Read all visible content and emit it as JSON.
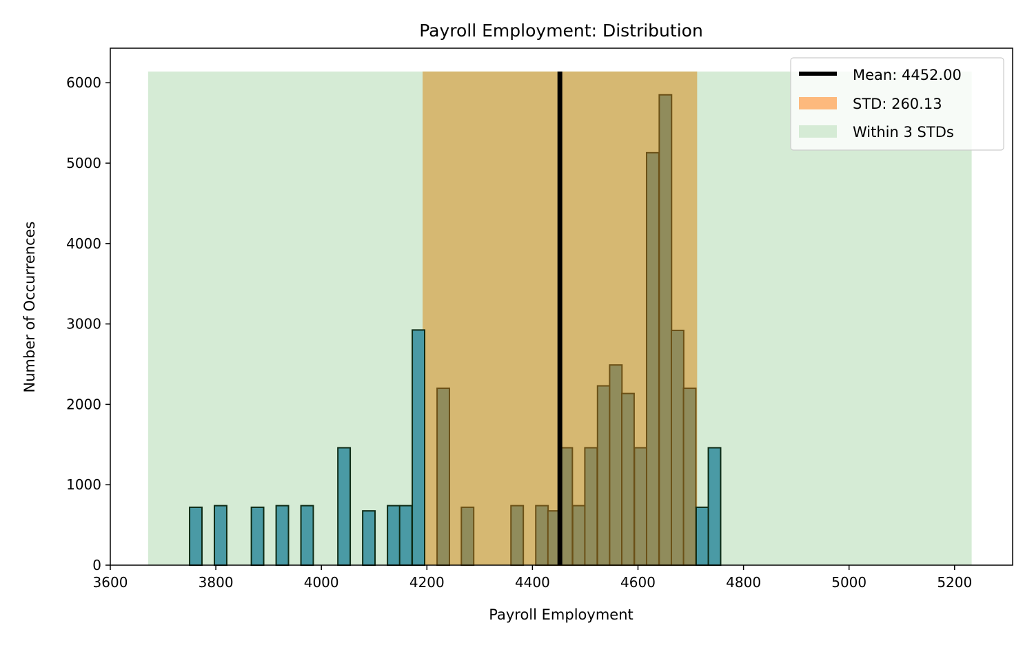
{
  "chart_data": {
    "type": "bar",
    "title": "Payroll Employment: Distribution",
    "xlabel": "Payroll Employment",
    "ylabel": "Number of Occurrences",
    "xlim": [
      3600,
      5310
    ],
    "ylim": [
      0,
      6430
    ],
    "xticks": [
      3600,
      3800,
      4000,
      4200,
      4400,
      4600,
      4800,
      5000,
      5200
    ],
    "yticks": [
      0,
      1000,
      2000,
      3000,
      4000,
      5000,
      6000
    ],
    "grid": false,
    "legend_position": "top-right",
    "bin_width": 23.4,
    "bins": [
      {
        "x": 3762,
        "count": 720
      },
      {
        "x": 3809,
        "count": 740
      },
      {
        "x": 3879,
        "count": 720
      },
      {
        "x": 3926,
        "count": 740
      },
      {
        "x": 3973,
        "count": 740
      },
      {
        "x": 4043,
        "count": 1460
      },
      {
        "x": 4090,
        "count": 675
      },
      {
        "x": 4137,
        "count": 740
      },
      {
        "x": 4160,
        "count": 740
      },
      {
        "x": 4184,
        "count": 2925
      },
      {
        "x": 4231,
        "count": 2200
      },
      {
        "x": 4277,
        "count": 720
      },
      {
        "x": 4371,
        "count": 740
      },
      {
        "x": 4418,
        "count": 740
      },
      {
        "x": 4441,
        "count": 675
      },
      {
        "x": 4464,
        "count": 1460
      },
      {
        "x": 4488,
        "count": 740
      },
      {
        "x": 4511,
        "count": 1460
      },
      {
        "x": 4535,
        "count": 2230
      },
      {
        "x": 4558,
        "count": 2490
      },
      {
        "x": 4581,
        "count": 2135
      },
      {
        "x": 4605,
        "count": 1460
      },
      {
        "x": 4628,
        "count": 5130
      },
      {
        "x": 4652,
        "count": 5850
      },
      {
        "x": 4675,
        "count": 2920
      },
      {
        "x": 4698,
        "count": 2200
      },
      {
        "x": 4722,
        "count": 720
      },
      {
        "x": 4745,
        "count": 1460
      }
    ],
    "mean": 4452.0,
    "std": 260.13,
    "band_top": 6140,
    "std_band": [
      4191.87,
      4712.13
    ],
    "three_std_band": [
      3671.61,
      5232.39
    ],
    "legend": [
      {
        "label": "Mean: 4452.00",
        "kind": "line",
        "color": "#000000"
      },
      {
        "label": "STD: 260.13",
        "kind": "patch",
        "color": "#fdb97d"
      },
      {
        "label": "Within 3 STDs",
        "kind": "patch",
        "color": "#d5ebd5"
      }
    ],
    "colors": {
      "bar_fill": "#4a9aa5",
      "bar_edge": "#0d2a14",
      "bar_fill_in_std": "#908c5c",
      "bar_edge_in_std": "#6b5016",
      "std_band": "#d6b872",
      "three_std_band": "#d5ebd5",
      "mean_line": "#000000"
    }
  }
}
